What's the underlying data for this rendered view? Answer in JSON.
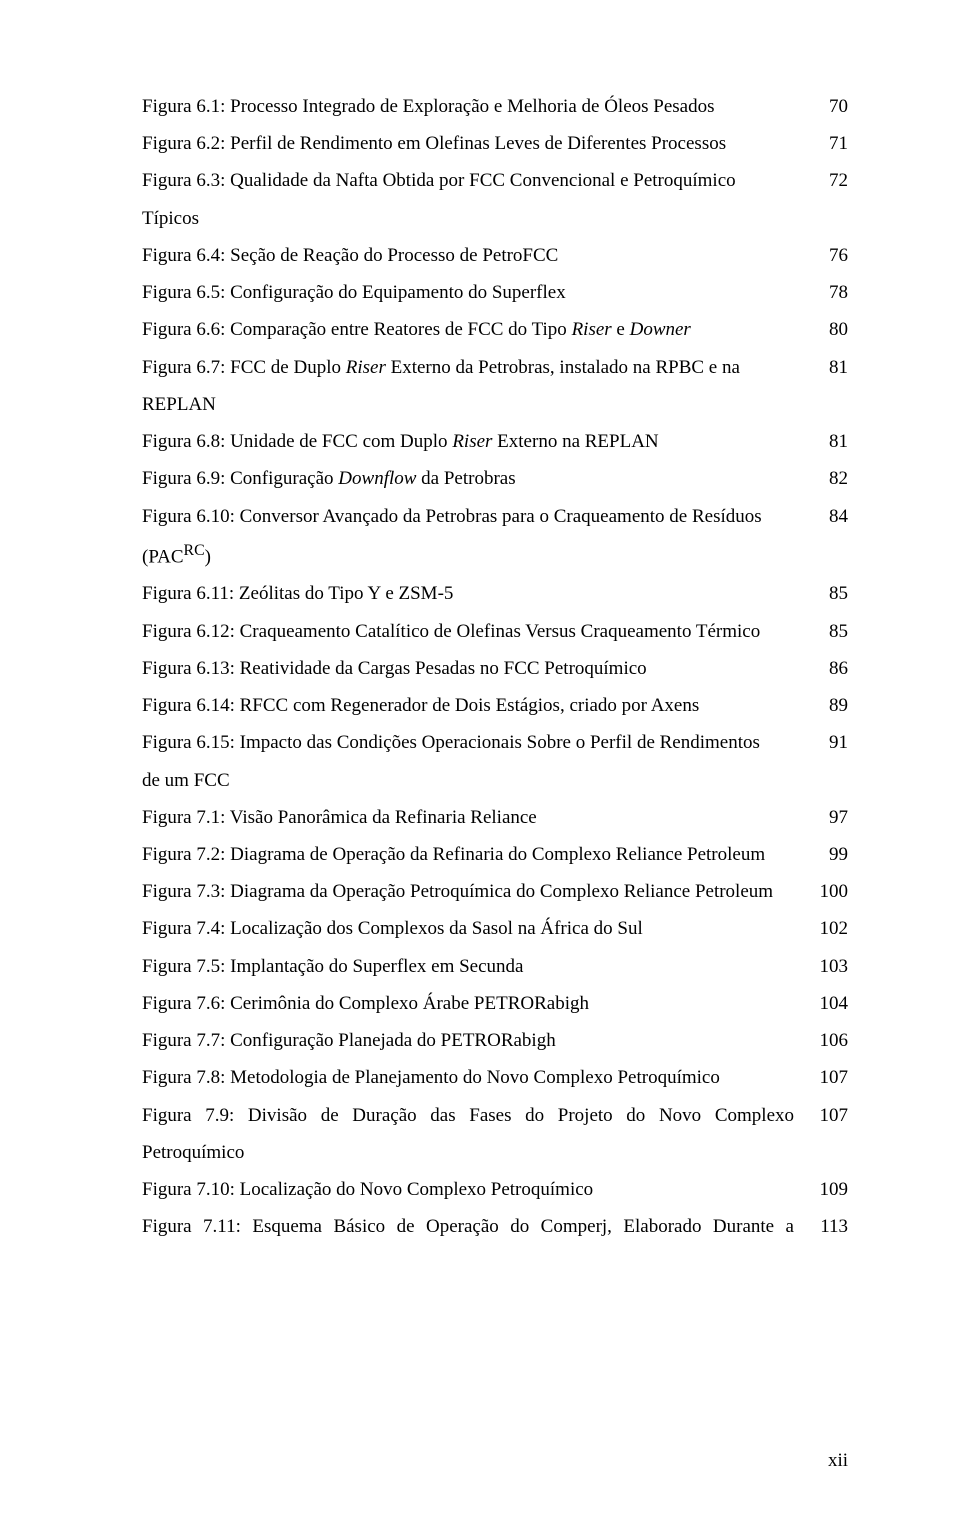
{
  "page_number": "xii",
  "entries": [
    {
      "label_html": "Figura 6.1: Processo Integrado de Exploração e Melhoria de Óleos Pesados",
      "page": "70"
    },
    {
      "label_html": "Figura 6.2: Perfil de Rendimento em Olefinas Leves de Diferentes Processos",
      "page": "71"
    },
    {
      "label_html": "Figura 6.3: Qualidade da Nafta Obtida por FCC Convencional e Petroquímico",
      "page": "72",
      "continuation": "Típicos"
    },
    {
      "label_html": "Figura 6.4: Seção de Reação do Processo de PetroFCC",
      "page": "76"
    },
    {
      "label_html": "Figura 6.5: Configuração do Equipamento do Superflex",
      "page": "78"
    },
    {
      "label_html": "Figura 6.6: Comparação entre Reatores de FCC do Tipo <em>Riser</em> e <em>Downer</em>",
      "page": "80"
    },
    {
      "label_html": "Figura 6.7:  FCC de Duplo <em>Riser</em>  Externo da Petrobras, instalado na RPBC e na",
      "page": "81",
      "continuation": "REPLAN"
    },
    {
      "label_html": "Figura 6.8: Unidade de FCC com Duplo <em>Riser</em> Externo na REPLAN",
      "page": "81"
    },
    {
      "label_html": "Figura 6.9: Configuração <em>Downflow</em> da Petrobras",
      "page": "82"
    },
    {
      "label_html": "Figura 6.10:  Conversor Avançado da Petrobras para o Craqueamento de Resíduos",
      "page": "84",
      "continuation": "(PAC<sup>RC</sup>)"
    },
    {
      "label_html": "Figura 6.11:  Zeólitas do Tipo Y e ZSM-5",
      "page": "85"
    },
    {
      "label_html": "Figura 6.12:  Craqueamento Catalítico de Olefinas Versus Craqueamento Térmico",
      "page": "85"
    },
    {
      "label_html": "Figura 6.13:  Reatividade da Cargas Pesadas no FCC Petroquímico",
      "page": "86"
    },
    {
      "label_html": "Figura 6.14: RFCC com Regenerador de Dois Estágios, criado por Axens",
      "page": "89"
    },
    {
      "label_html": "Figura 6.15:  Impacto das Condições Operacionais Sobre o Perfil de Rendimentos",
      "page": "91",
      "continuation": "de um FCC"
    },
    {
      "label_html": "Figura 7.1: Visão Panorâmica da Refinaria Reliance",
      "page": "97"
    },
    {
      "label_html": "Figura 7.2: Diagrama de Operação da Refinaria do Complexo Reliance Petroleum",
      "page": "99"
    },
    {
      "label_html": "Figura 7.3: Diagrama da Operação Petroquímica do Complexo Reliance Petroleum",
      "page": "100"
    },
    {
      "label_html": "Figura 7.4: Localização dos Complexos da Sasol na África do Sul",
      "page": "102"
    },
    {
      "label_html": "Figura 7.5: Implantação do Superflex em Secunda",
      "page": "103"
    },
    {
      "label_html": "Figura 7.6: Cerimônia do Complexo Árabe PETRORabigh",
      "page": "104"
    },
    {
      "label_html": "Figura 7.7: Configuração Planejada do PETRORabigh",
      "page": "106"
    },
    {
      "label_html": "Figura 7.8:  Metodologia de Planejamento do Novo Complexo Petroquímico",
      "page": "107"
    },
    {
      "label_html": "Figura 7.9:  Divisão de Duração das Fases do Projeto do Novo Complexo",
      "page": "107",
      "continuation": "Petroquímico",
      "justify_spread": true
    },
    {
      "label_html": "Figura 7.10:  Localização do Novo Complexo Petroquímico",
      "page": "109"
    },
    {
      "label_html": "Figura 7.11:  Esquema Básico de Operação do Comperj, Elaborado Durante a",
      "page": "113",
      "justify_spread": true
    }
  ]
}
